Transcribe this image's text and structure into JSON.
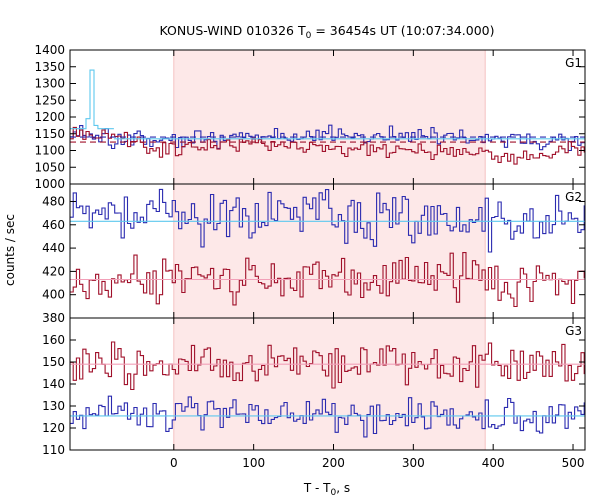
{
  "title": "KONUS-WIND 010326 T0 = 36454s UT (10:07:34.000)",
  "title_parts": {
    "pre": "KONUS-WIND 010326 T",
    "sub": "0",
    "post": " = 36454s UT (10:07:34.000)"
  },
  "ylabel": "counts / sec",
  "xlabel_parts": {
    "pre": "T - T",
    "sub": "0",
    "post": ", s"
  },
  "colors": {
    "blue": "#2b2bb0",
    "red": "#a0102a",
    "cyan": "#5ec8ee",
    "pink": "#f2a0b8",
    "shade": "#fde8e8",
    "shade_stroke": "#f5c2c2"
  },
  "chart_data": [
    {
      "type": "line",
      "panel": "G1",
      "label": "G1",
      "xlim": [
        -130,
        515
      ],
      "ylim": [
        1000,
        1400
      ],
      "y_ticks": [
        1000,
        1050,
        1100,
        1150,
        1200,
        1250,
        1300,
        1350,
        1400
      ],
      "x_ticks": [
        0,
        100,
        200,
        300,
        400,
        500
      ],
      "shaded_interval": [
        0,
        390
      ],
      "series": [
        {
          "color": "blue",
          "style": "step",
          "seed": 11,
          "base": 1135,
          "noise": 14,
          "trend": [
            [
              -130,
              1150
            ],
            [
              -80,
              1125
            ],
            [
              0,
              1130
            ],
            [
              80,
              1140
            ],
            [
              200,
              1150
            ],
            [
              300,
              1145
            ],
            [
              420,
              1130
            ],
            [
              515,
              1125
            ]
          ]
        },
        {
          "color": "red",
          "style": "step",
          "seed": 23,
          "base": 1110,
          "noise": 12,
          "trend": [
            [
              -130,
              1150
            ],
            [
              -80,
              1140
            ],
            [
              -20,
              1105
            ],
            [
              100,
              1120
            ],
            [
              250,
              1100
            ],
            [
              350,
              1095
            ],
            [
              440,
              1080
            ],
            [
              515,
              1110
            ]
          ]
        },
        {
          "color": "cyan",
          "style": "step",
          "points": [
            [
              -130,
              1165
            ],
            [
              -110,
              1195
            ],
            [
              -105,
              1340
            ],
            [
              -100,
              1175
            ],
            [
              -95,
              1165
            ],
            [
              -75,
              1165
            ]
          ]
        },
        {
          "color": "blue",
          "style": "dash",
          "points": [
            [
              -130,
              1140
            ],
            [
              515,
              1140
            ]
          ]
        },
        {
          "color": "red",
          "style": "dash",
          "points": [
            [
              -130,
              1125
            ],
            [
              515,
              1125
            ]
          ]
        },
        {
          "color": "cyan",
          "style": "solid",
          "points": [
            [
              -75,
              1135
            ],
            [
              515,
              1135
            ]
          ]
        }
      ]
    },
    {
      "type": "line",
      "panel": "G2",
      "label": "G2",
      "xlim": [
        -130,
        515
      ],
      "ylim": [
        380,
        495
      ],
      "y_ticks": [
        380,
        400,
        420,
        440,
        460,
        480
      ],
      "x_ticks": [
        0,
        100,
        200,
        300,
        400,
        500
      ],
      "shaded_interval": [
        0,
        390
      ],
      "series": [
        {
          "color": "blue",
          "style": "step",
          "seed": 37,
          "base": 463,
          "noise": 11,
          "trend": [
            [
              -130,
              470
            ],
            [
              515,
              463
            ]
          ]
        },
        {
          "color": "red",
          "style": "step",
          "seed": 41,
          "base": 413,
          "noise": 9,
          "trend": [
            [
              -130,
              413
            ],
            [
              515,
              413
            ]
          ]
        },
        {
          "color": "cyan",
          "style": "solid",
          "points": [
            [
              -130,
              463
            ],
            [
              515,
              463
            ]
          ]
        },
        {
          "color": "pink",
          "style": "solid",
          "points": [
            [
              -130,
              413
            ],
            [
              515,
              413
            ]
          ]
        }
      ]
    },
    {
      "type": "line",
      "panel": "G3",
      "label": "G3",
      "xlim": [
        -130,
        515
      ],
      "ylim": [
        110,
        170
      ],
      "y_ticks": [
        110,
        120,
        130,
        140,
        150,
        160
      ],
      "x_ticks": [
        0,
        100,
        200,
        300,
        400,
        500
      ],
      "x_tick_labels": [
        "0",
        "100",
        "200",
        "300",
        "400",
        "500"
      ],
      "xlabel": "T - T0, s",
      "shaded_interval": [
        0,
        390
      ],
      "series": [
        {
          "color": "red",
          "style": "step",
          "seed": 53,
          "base": 149,
          "noise": 4.5,
          "trend": [
            [
              -130,
              149
            ],
            [
              515,
              149
            ]
          ]
        },
        {
          "color": "blue",
          "style": "step",
          "seed": 67,
          "base": 125,
          "noise": 4.5,
          "trend": [
            [
              -130,
              126
            ],
            [
              515,
              125
            ]
          ]
        },
        {
          "color": "pink",
          "style": "solid",
          "points": [
            [
              -130,
              149
            ],
            [
              515,
              149
            ]
          ]
        },
        {
          "color": "cyan",
          "style": "solid",
          "points": [
            [
              -130,
              125.5
            ],
            [
              515,
              125.5
            ]
          ]
        }
      ]
    }
  ]
}
